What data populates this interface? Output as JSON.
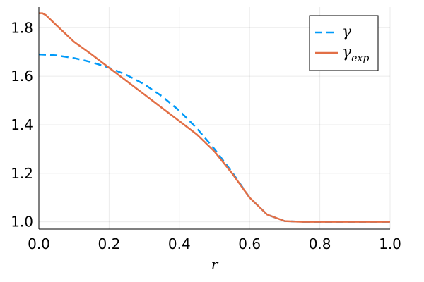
{
  "chart_data": {
    "type": "line",
    "title": "",
    "xlabel": "r",
    "ylabel": "",
    "xlim": [
      0.0,
      1.0
    ],
    "ylim": [
      0.97,
      1.885
    ],
    "grid": true,
    "legend_position": "top-right",
    "x_ticks": [
      0.0,
      0.2,
      0.4,
      0.6,
      0.8,
      1.0
    ],
    "x_tick_labels": [
      "0.0",
      "0.2",
      "0.4",
      "0.6",
      "0.8",
      "1.0"
    ],
    "y_ticks": [
      1.0,
      1.2,
      1.4,
      1.6,
      1.8
    ],
    "y_tick_labels": [
      "1.0",
      "1.2",
      "1.4",
      "1.6",
      "1.8"
    ],
    "series": [
      {
        "name": "γ",
        "color": "#009af9",
        "style": "dashed",
        "x": [
          0.0,
          0.05,
          0.1,
          0.15,
          0.2,
          0.25,
          0.3,
          0.35,
          0.4,
          0.45,
          0.5,
          0.55,
          0.6,
          0.65,
          0.7,
          0.75,
          0.8,
          0.85,
          0.9,
          0.95,
          1.0
        ],
        "y": [
          1.69,
          1.686,
          1.675,
          1.658,
          1.635,
          1.605,
          1.567,
          1.518,
          1.458,
          1.385,
          1.3,
          1.205,
          1.1,
          1.03,
          1.003,
          1.0,
          1.0,
          1.0,
          1.0,
          1.0,
          1.0
        ]
      },
      {
        "name": "γexp",
        "label_main": "γ",
        "label_sub": "exp",
        "color": "#e26f46",
        "style": "solid",
        "x": [
          0.0,
          0.01,
          0.02,
          0.05,
          0.1,
          0.15,
          0.2,
          0.25,
          0.3,
          0.35,
          0.4,
          0.45,
          0.5,
          0.55,
          0.6,
          0.65,
          0.7,
          0.75,
          0.8,
          0.85,
          0.9,
          0.95,
          1.0
        ],
        "y": [
          1.86,
          1.86,
          1.852,
          1.81,
          1.742,
          1.69,
          1.635,
          1.58,
          1.525,
          1.47,
          1.415,
          1.36,
          1.29,
          1.2,
          1.1,
          1.03,
          1.003,
          1.0,
          1.0,
          1.0,
          1.0,
          1.0,
          1.0
        ]
      }
    ]
  }
}
